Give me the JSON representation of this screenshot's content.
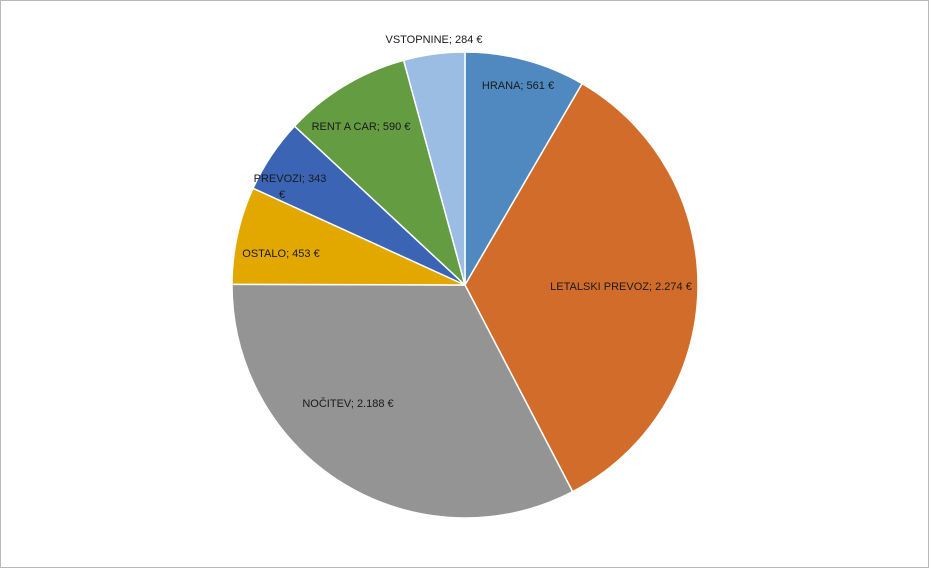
{
  "chart_data": {
    "type": "pie",
    "title": "",
    "legend": "none",
    "start_angle_deg": 0,
    "direction": "clockwise",
    "slices": [
      {
        "name": "HRANA",
        "value": 561,
        "value_label": "561 €",
        "color": "#4f89bf"
      },
      {
        "name": "LETALSKI  PREVOZ",
        "value": 2274,
        "value_label": "2.274 €",
        "color": "#d26c2a"
      },
      {
        "name": "NOČITEV",
        "value": 2188,
        "value_label": "2.188 €",
        "color": "#949494"
      },
      {
        "name": "OSTALO",
        "value": 453,
        "value_label": "453 €",
        "color": "#e2a800"
      },
      {
        "name": "PREVOZI",
        "value": 343,
        "value_label": "343 €",
        "color": "#3b64b5"
      },
      {
        "name": "RENT  A CAR",
        "value": 590,
        "value_label": "590 €",
        "color": "#639c41"
      },
      {
        "name": "VSTOPNINE",
        "value": 284,
        "value_label": "284 €",
        "color": "#9cbde3"
      }
    ]
  }
}
